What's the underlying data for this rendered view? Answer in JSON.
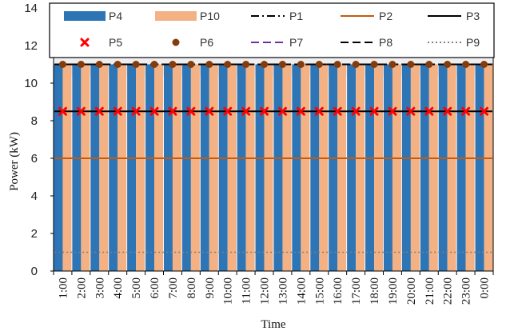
{
  "chart_data": {
    "type": "bar",
    "xlabel": "Time",
    "ylabel": "Power (kW)",
    "ylim": [
      0,
      14
    ],
    "yticks": [
      0,
      2,
      4,
      6,
      8,
      10,
      12,
      14
    ],
    "grid": false,
    "legend_position": "top",
    "categories": [
      "1:00",
      "2:00",
      "3:00",
      "4:00",
      "5:00",
      "6:00",
      "7:00",
      "8:00",
      "9:00",
      "10:00",
      "11:00",
      "12:00",
      "13:00",
      "14:00",
      "15:00",
      "16:00",
      "17:00",
      "18:00",
      "19:00",
      "20:00",
      "21:00",
      "22:00",
      "23:00",
      "0:00"
    ],
    "bar_series": [
      {
        "name": "P4",
        "color": "#2e75b6",
        "values": [
          11,
          11,
          11,
          11,
          11,
          11,
          11,
          11,
          11,
          11,
          11,
          11,
          11,
          11,
          11,
          11,
          11,
          11,
          11,
          11,
          11,
          11,
          11,
          11
        ]
      },
      {
        "name": "P10",
        "color": "#f4b183",
        "values": [
          11,
          11,
          11,
          11,
          11,
          11,
          11,
          11,
          11,
          11,
          11,
          11,
          11,
          11,
          11,
          11,
          11,
          11,
          11,
          11,
          11,
          11,
          11,
          11
        ]
      }
    ],
    "line_series": [
      {
        "name": "P1",
        "color": "#000000",
        "style": "dash-dot",
        "value": 11
      },
      {
        "name": "P2",
        "color": "#c55a11",
        "style": "solid",
        "value": 6
      },
      {
        "name": "P3",
        "color": "#000000",
        "style": "solid",
        "value": 8.5
      },
      {
        "name": "P7",
        "color": "#7030a0",
        "style": "dashed",
        "value": 11
      },
      {
        "name": "P8",
        "color": "#000000",
        "style": "dashed",
        "value": 11
      },
      {
        "name": "P9",
        "color": "#7f7f7f",
        "style": "dotted",
        "value": 1
      }
    ],
    "marker_series": [
      {
        "name": "P5",
        "color": "#ff0000",
        "marker": "x",
        "value": 8.5
      },
      {
        "name": "P6",
        "color": "#843c0c",
        "marker": "circle",
        "value": 11
      }
    ],
    "legend": [
      {
        "name": "P4",
        "kind": "bar",
        "color": "#2e75b6"
      },
      {
        "name": "P10",
        "kind": "bar",
        "color": "#f4b183"
      },
      {
        "name": "P1",
        "kind": "line",
        "color": "#000000",
        "style": "dash-dot"
      },
      {
        "name": "P2",
        "kind": "line",
        "color": "#c55a11",
        "style": "solid"
      },
      {
        "name": "P3",
        "kind": "line",
        "color": "#000000",
        "style": "solid"
      },
      {
        "name": "P5",
        "kind": "marker",
        "color": "#ff0000",
        "marker": "x"
      },
      {
        "name": "P6",
        "kind": "marker",
        "color": "#843c0c",
        "marker": "circle"
      },
      {
        "name": "P7",
        "kind": "line",
        "color": "#7030a0",
        "style": "dashed"
      },
      {
        "name": "P8",
        "kind": "line",
        "color": "#000000",
        "style": "dashed"
      },
      {
        "name": "P9",
        "kind": "line",
        "color": "#7f7f7f",
        "style": "dotted"
      }
    ]
  }
}
